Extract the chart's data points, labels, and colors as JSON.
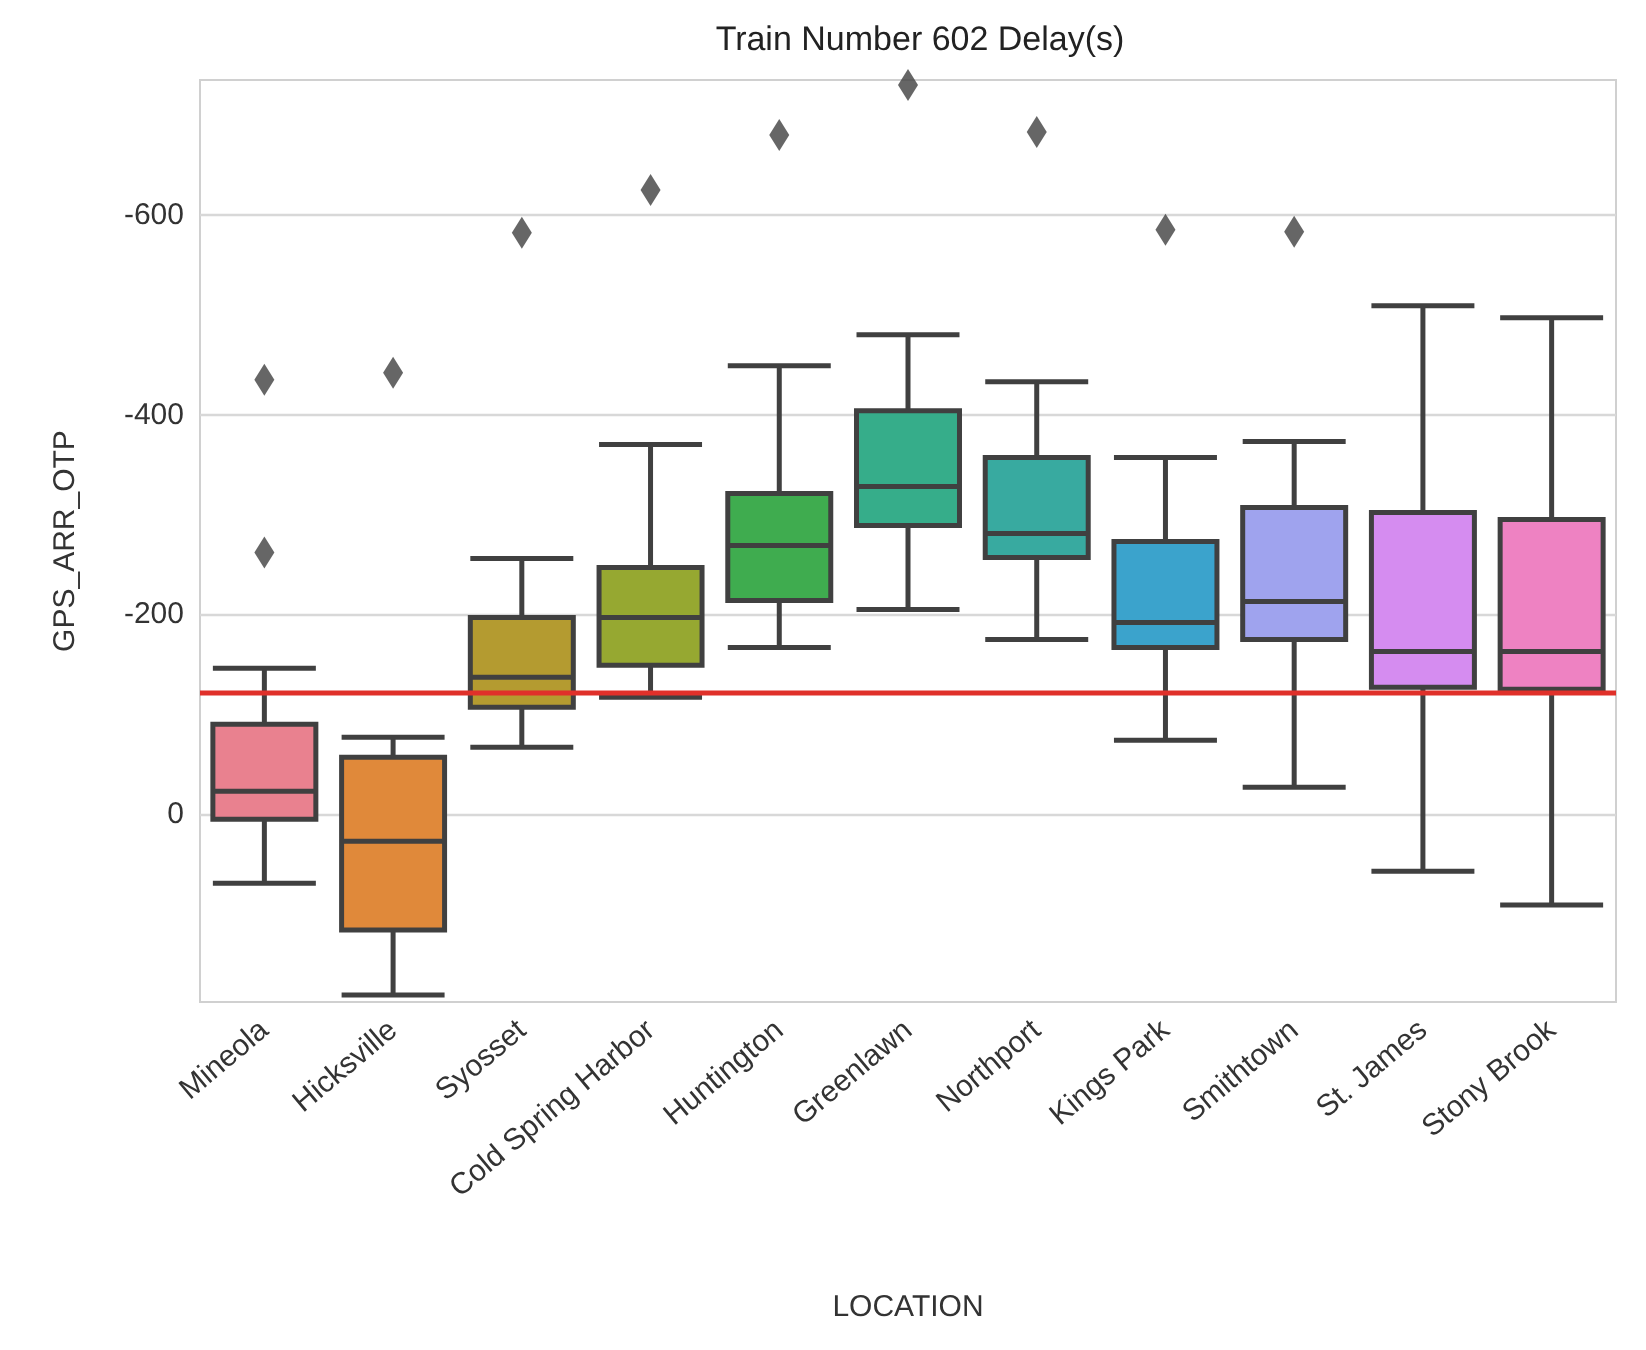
{
  "chart_data": {
    "type": "box",
    "title": "Train Number 602 Delay(s)",
    "xlabel": "LOCATION",
    "ylabel": "GPS_ARR_OTP",
    "categories": [
      "Mineola",
      "Hicksville",
      "Syosset",
      "Cold Spring Harbor",
      "Huntington",
      "Greenlawn",
      "Northport",
      "Kings Park",
      "Smithtown",
      "St. James",
      "Stony Brook"
    ],
    "colors": [
      "#e9818f",
      "#e0893a",
      "#b49b30",
      "#96a831",
      "#3fac4f",
      "#36ad8a",
      "#38aaa0",
      "#3ba3cc",
      "#9fa3ee",
      "#d58cf0",
      "#ee82c2"
    ],
    "boxes": [
      {
        "low": -146,
        "q1": -90,
        "median": -23,
        "q3": 5,
        "high": 69,
        "outliers": [
          -435,
          -262
        ]
      },
      {
        "low": -77,
        "q1": -57,
        "median": 27,
        "q3": 116,
        "high": 181,
        "outliers": [
          -442
        ]
      },
      {
        "low": -256,
        "q1": -197,
        "median": -137,
        "q3": -107,
        "high": -67,
        "outliers": [
          -582
        ]
      },
      {
        "low": -370,
        "q1": -247,
        "median": -197,
        "q3": -149,
        "high": -117,
        "outliers": [
          -625
        ]
      },
      {
        "low": -449,
        "q1": -321,
        "median": -269,
        "q3": -214,
        "high": -167,
        "outliers": [
          -680
        ]
      },
      {
        "low": -480,
        "q1": -404,
        "median": -328,
        "q3": -289,
        "high": -205,
        "outliers": [
          -730
        ]
      },
      {
        "low": -433,
        "q1": -357,
        "median": -281,
        "q3": -257,
        "high": -175,
        "outliers": [
          -683
        ]
      },
      {
        "low": -357,
        "q1": -273,
        "median": -192,
        "q3": -167,
        "high": -74,
        "outliers": [
          -585
        ]
      },
      {
        "low": -373,
        "q1": -307,
        "median": -213,
        "q3": -175,
        "high": -27,
        "outliers": [
          -583
        ]
      },
      {
        "low": -509,
        "q1": -302,
        "median": -163,
        "q3": -127,
        "high": 57
      },
      {
        "low": -497,
        "q1": -295,
        "median": -163,
        "q3": -125,
        "high": 91
      }
    ],
    "ylim": [
      188,
      -735
    ],
    "yticks": [
      0,
      -200,
      -400,
      -600
    ],
    "grid": "y",
    "marker": "diamond",
    "ref_lines": [
      {
        "axis": "y",
        "value": -121,
        "color": "#e0302a"
      }
    ]
  }
}
